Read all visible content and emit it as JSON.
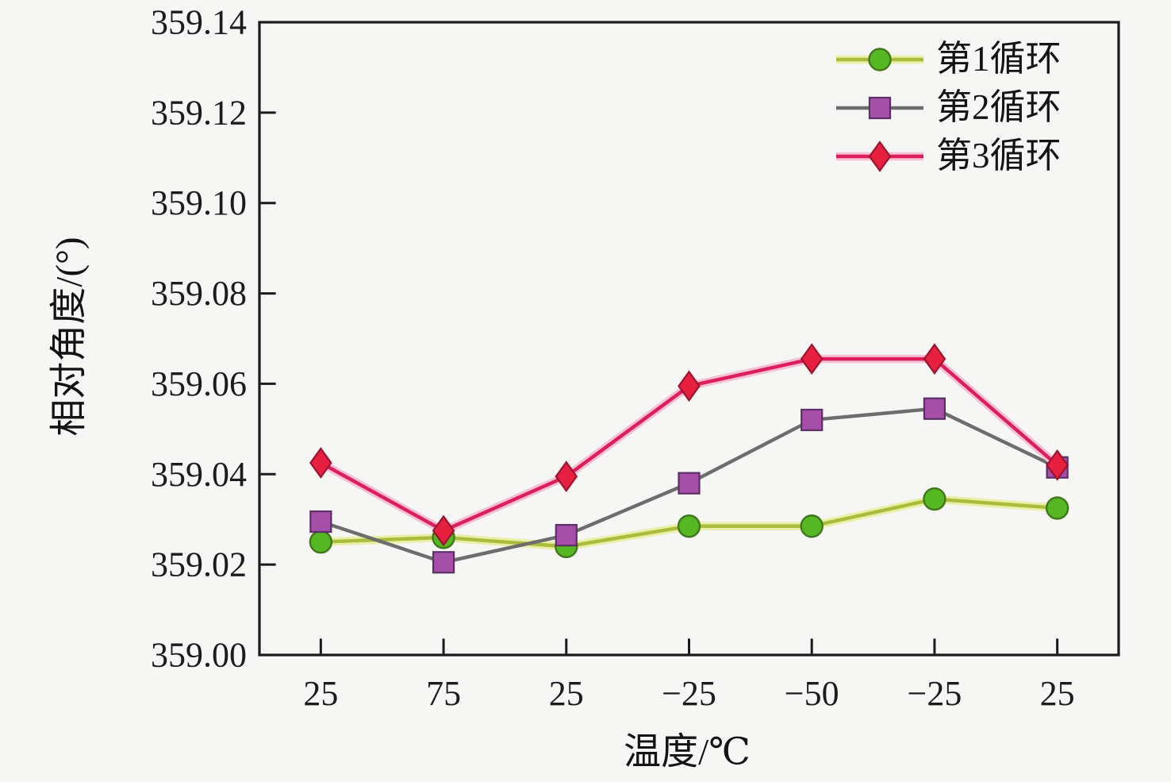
{
  "chart_data": {
    "type": "line",
    "title": "",
    "xlabel": "温度/℃",
    "ylabel": "相对角度/(°)",
    "categories": [
      "25",
      "75",
      "25",
      "−25",
      "−50",
      "−25",
      "25"
    ],
    "ylim": [
      359.0,
      359.14
    ],
    "y_ticks": [
      "359.00",
      "359.02",
      "359.04",
      "359.06",
      "359.08",
      "359.10",
      "359.12",
      "359.14"
    ],
    "grid": false,
    "legend_position": "top-right",
    "colors": {
      "background": "#f6f6f4",
      "axis": "#1a1a1a",
      "text": "#1c1c1c"
    },
    "series": [
      {
        "name": "第1循环",
        "marker": "circle",
        "line_color": "#aabc3c",
        "glow_color": "#e9efa6",
        "marker_fill": "#55b822",
        "marker_edge": "#41761d",
        "values": [
          359.025,
          359.026,
          359.024,
          359.0285,
          359.0285,
          359.0345,
          359.0325
        ]
      },
      {
        "name": "第2循环",
        "marker": "square",
        "line_color": "#6d6d6d",
        "glow_color": null,
        "marker_fill": "#a64fa8",
        "marker_edge": "#5c2f66",
        "values": [
          359.0295,
          359.0205,
          359.0265,
          359.038,
          359.052,
          359.0545,
          359.0415
        ]
      },
      {
        "name": "第3循环",
        "marker": "diamond",
        "line_color": "#de1e5a",
        "glow_color": "#f8c0d4",
        "marker_fill": "#e6203e",
        "marker_edge": "#9c1430",
        "values": [
          359.0425,
          359.0275,
          359.0395,
          359.0595,
          359.0655,
          359.0655,
          359.042
        ]
      }
    ]
  }
}
